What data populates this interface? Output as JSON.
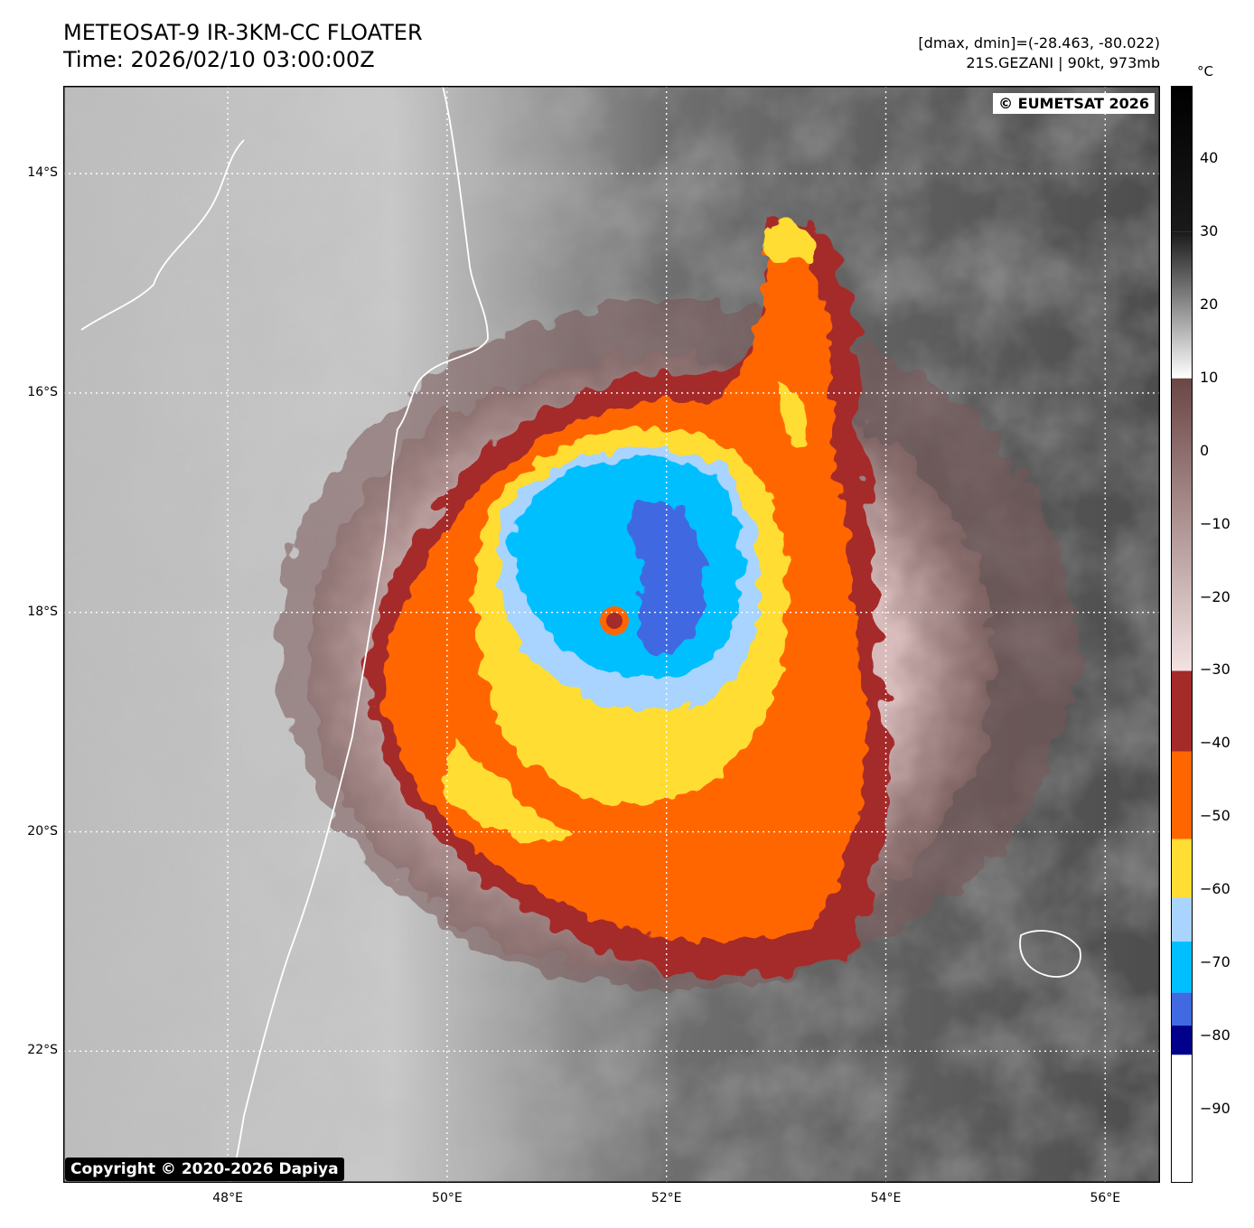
{
  "header": {
    "title_line1": "METEOSAT-9 IR-3KM-CC FLOATER",
    "title_line2": "Time: 2026/02/10 03:00:00Z",
    "range_line": "[dmax, dmin]=(-28.463, -80.022)",
    "storm_line": "21S.GEZANI | 90kt, 973mb"
  },
  "badges": {
    "eumetsat": "© EUMETSAT 2026",
    "copyright": "Copyright © 2020-2026 Dapiya"
  },
  "map": {
    "lon_range": [
      46.5,
      56.5
    ],
    "lat_range": [
      -23.2,
      -13.2
    ],
    "lat_ticks": [
      {
        "value": -14,
        "label": "14°S"
      },
      {
        "value": -16,
        "label": "16°S"
      },
      {
        "value": -18,
        "label": "18°S"
      },
      {
        "value": -20,
        "label": "20°S"
      },
      {
        "value": -22,
        "label": "22°S"
      }
    ],
    "lon_ticks": [
      {
        "value": 48,
        "label": "48°E"
      },
      {
        "value": 50,
        "label": "50°E"
      },
      {
        "value": 52,
        "label": "52°E"
      },
      {
        "value": 54,
        "label": "54°E"
      },
      {
        "value": 56,
        "label": "56°E"
      }
    ],
    "storm_center": {
      "lon": 51.55,
      "lat": -18.1
    },
    "colors": {
      "land_coast": "#ffffff",
      "cloud_dark_base": "#4a4a4a",
      "cloud_light": "#d8d8d8",
      "band_-30_to_-40": "#a52a2a",
      "band_-40_to_-50": "#ff6600",
      "band_-50_to_-60": "#ffdd33",
      "band_-60_to_-70": "#a8d4ff",
      "band_-70_to_-75": "#00bfff",
      "band_-75_to_-80": "#4169e1"
    }
  },
  "colorbar": {
    "unit": "°C",
    "range": [
      -100,
      50
    ],
    "ticks": [
      "40",
      "30",
      "20",
      "10",
      "0",
      "−10",
      "−20",
      "−30",
      "−40",
      "−50",
      "−60",
      "−70",
      "−80",
      "−90"
    ],
    "tick_values": [
      40,
      30,
      20,
      10,
      0,
      -10,
      -20,
      -30,
      -40,
      -50,
      -60,
      -70,
      -80,
      -90
    ],
    "segments": [
      {
        "from": 50,
        "to": 30,
        "c1": "#000000",
        "c2": "#1a1a1a"
      },
      {
        "from": 30,
        "to": 10,
        "c1": "#1a1a1a",
        "c2": "#ffffff"
      },
      {
        "from": 10,
        "to": -30,
        "c1": "#6b4646",
        "c2": "#f3e2e2"
      },
      {
        "from": -30,
        "to": -41,
        "c1": "#a52a2a",
        "c2": "#a52a2a"
      },
      {
        "from": -41,
        "to": -53,
        "c1": "#ff6600",
        "c2": "#ff6600"
      },
      {
        "from": -53,
        "to": -61,
        "c1": "#ffdd33",
        "c2": "#ffdd33"
      },
      {
        "from": -61,
        "to": -67,
        "c1": "#a8d4ff",
        "c2": "#a8d4ff"
      },
      {
        "from": -67,
        "to": -74,
        "c1": "#00bfff",
        "c2": "#00bfff"
      },
      {
        "from": -74,
        "to": -78.5,
        "c1": "#4169e1",
        "c2": "#4169e1"
      },
      {
        "from": -78.5,
        "to": -82.5,
        "c1": "#00008b",
        "c2": "#00008b"
      },
      {
        "from": -82.5,
        "to": -100,
        "c1": "#ffffff",
        "c2": "#ffffff"
      }
    ]
  }
}
